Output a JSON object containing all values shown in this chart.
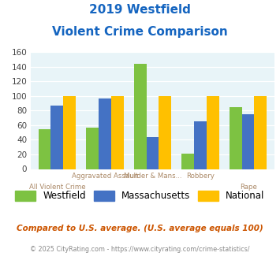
{
  "title_line1": "2019 Westfield",
  "title_line2": "Violent Crime Comparison",
  "categories": [
    "All Violent Crime",
    "Aggravated Assault",
    "Murder & Mans...",
    "Robbery",
    "Rape"
  ],
  "top_labels": [
    "",
    "Aggravated Assault",
    "Murder & Mans...",
    "Robbery",
    ""
  ],
  "bot_labels": [
    "All Violent Crime",
    "",
    "",
    "",
    "Rape"
  ],
  "westfield": [
    54,
    57,
    144,
    21,
    85
  ],
  "massachusetts": [
    87,
    96,
    44,
    65,
    75
  ],
  "national": [
    100,
    100,
    100,
    100,
    100
  ],
  "bar_colors": {
    "westfield": "#7DC242",
    "massachusetts": "#4472C4",
    "national": "#FFC000"
  },
  "ylim": [
    0,
    160
  ],
  "yticks": [
    0,
    20,
    40,
    60,
    80,
    100,
    120,
    140,
    160
  ],
  "bg_color": "#E8F4F8",
  "title_color": "#1565C0",
  "footer_text": "Compared to U.S. average. (U.S. average equals 100)",
  "copyright_text": "© 2025 CityRating.com - https://www.cityrating.com/crime-statistics/",
  "footer_color": "#CC5500",
  "copyright_color": "#888888",
  "label_color": "#AA8866"
}
